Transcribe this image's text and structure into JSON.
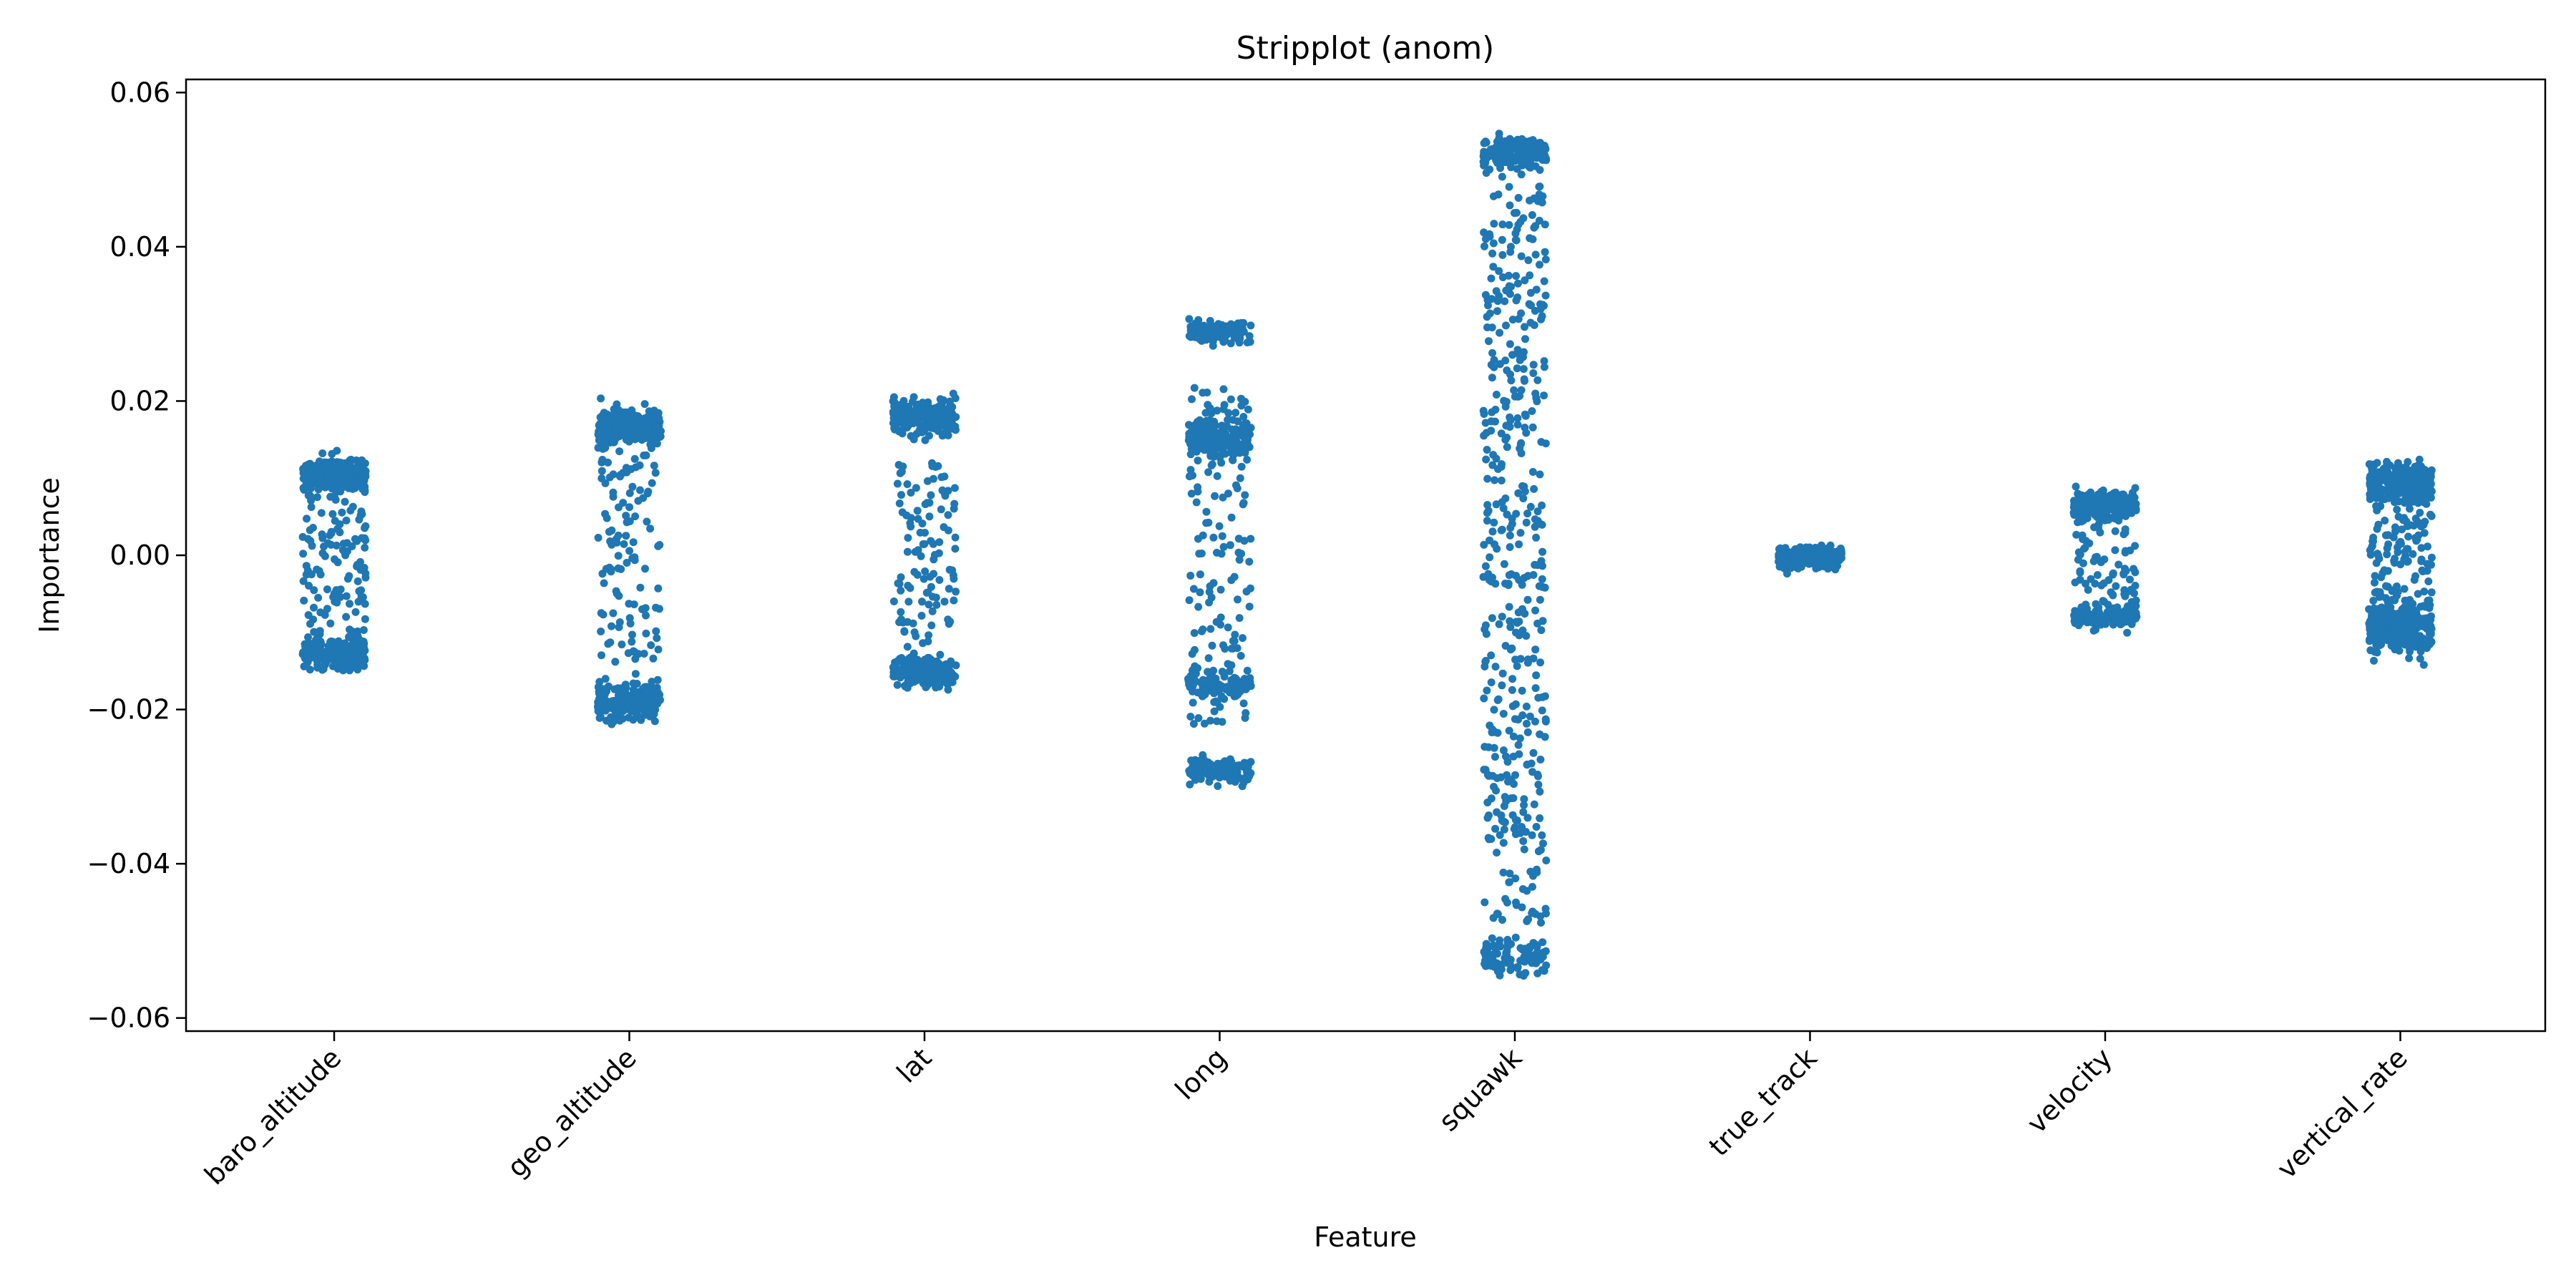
{
  "chart_data": {
    "type": "scatter",
    "title": "Stripplot (anom)",
    "xlabel": "Feature",
    "ylabel": "Importance",
    "categories": [
      "baro_altitude",
      "geo_altitude",
      "lat",
      "long",
      "squawk",
      "true_track",
      "velocity",
      "vertical_rate"
    ],
    "ylim": [
      -0.0617,
      0.0617
    ],
    "yticks": [
      0.06,
      0.04,
      0.02,
      0.0,
      -0.02,
      -0.04,
      -0.06
    ],
    "ytick_labels": [
      "0.06",
      "0.04",
      "0.02",
      "0.00",
      "−0.02",
      "−0.04",
      "−0.06"
    ],
    "grid": false,
    "point_color": "#1f77b4",
    "series": [
      {
        "category": "baro_altitude",
        "range": [
          -0.015,
          0.0158
        ],
        "clusters": [
          {
            "center": 0.0105,
            "spread": 0.002,
            "weight": 0.45
          },
          {
            "center": -0.0125,
            "spread": 0.002,
            "weight": 0.35
          },
          {
            "center": 0.0,
            "spread": 0.009,
            "weight": 0.2,
            "uniform": true
          }
        ],
        "count": 560
      },
      {
        "category": "geo_altitude",
        "range": [
          -0.022,
          0.021
        ],
        "clusters": [
          {
            "center": 0.0165,
            "spread": 0.002,
            "weight": 0.45
          },
          {
            "center": -0.019,
            "spread": 0.0022,
            "weight": 0.35
          },
          {
            "center": 0.0,
            "spread": 0.014,
            "weight": 0.2,
            "uniform": true
          }
        ],
        "count": 560
      },
      {
        "category": "lat",
        "range": [
          -0.02,
          0.022
        ],
        "clusters": [
          {
            "center": 0.018,
            "spread": 0.0022,
            "weight": 0.42
          },
          {
            "center": -0.015,
            "spread": 0.002,
            "weight": 0.35
          },
          {
            "center": 0.0,
            "spread": 0.012,
            "weight": 0.23,
            "uniform": true
          }
        ],
        "count": 480
      },
      {
        "category": "long",
        "range": [
          -0.03,
          0.031
        ],
        "clusters": [
          {
            "center": 0.029,
            "spread": 0.0012,
            "weight": 0.18
          },
          {
            "center": 0.0155,
            "spread": 0.0025,
            "weight": 0.25
          },
          {
            "center": -0.017,
            "spread": 0.0015,
            "weight": 0.15
          },
          {
            "center": -0.028,
            "spread": 0.0015,
            "weight": 0.17
          },
          {
            "center": 0.0,
            "spread": 0.022,
            "weight": 0.25,
            "uniform": true
          }
        ],
        "count": 620
      },
      {
        "category": "squawk",
        "range": [
          -0.056,
          0.056
        ],
        "clusters": [
          {
            "center": 0.052,
            "spread": 0.002,
            "weight": 0.22
          },
          {
            "center": -0.052,
            "spread": 0.002,
            "weight": 0.14
          },
          {
            "center": 0.0,
            "spread": 0.048,
            "weight": 0.64,
            "uniform": true
          }
        ],
        "count": 700
      },
      {
        "category": "true_track",
        "range": [
          -0.004,
          0.0035
        ],
        "clusters": [
          {
            "center": -0.0003,
            "spread": 0.0012,
            "weight": 1.0
          }
        ],
        "count": 420
      },
      {
        "category": "velocity",
        "range": [
          -0.011,
          0.011
        ],
        "clusters": [
          {
            "center": 0.0065,
            "spread": 0.0015,
            "weight": 0.45
          },
          {
            "center": -0.008,
            "spread": 0.0012,
            "weight": 0.35
          },
          {
            "center": 0.0,
            "spread": 0.008,
            "weight": 0.2,
            "uniform": true
          }
        ],
        "count": 460
      },
      {
        "category": "vertical_rate",
        "range": [
          -0.0175,
          0.016
        ],
        "clusters": [
          {
            "center": 0.0095,
            "spread": 0.0022,
            "weight": 0.4
          },
          {
            "center": -0.0095,
            "spread": 0.0025,
            "weight": 0.4
          },
          {
            "center": 0.0,
            "spread": 0.008,
            "weight": 0.2,
            "uniform": true
          }
        ],
        "count": 700
      }
    ]
  }
}
